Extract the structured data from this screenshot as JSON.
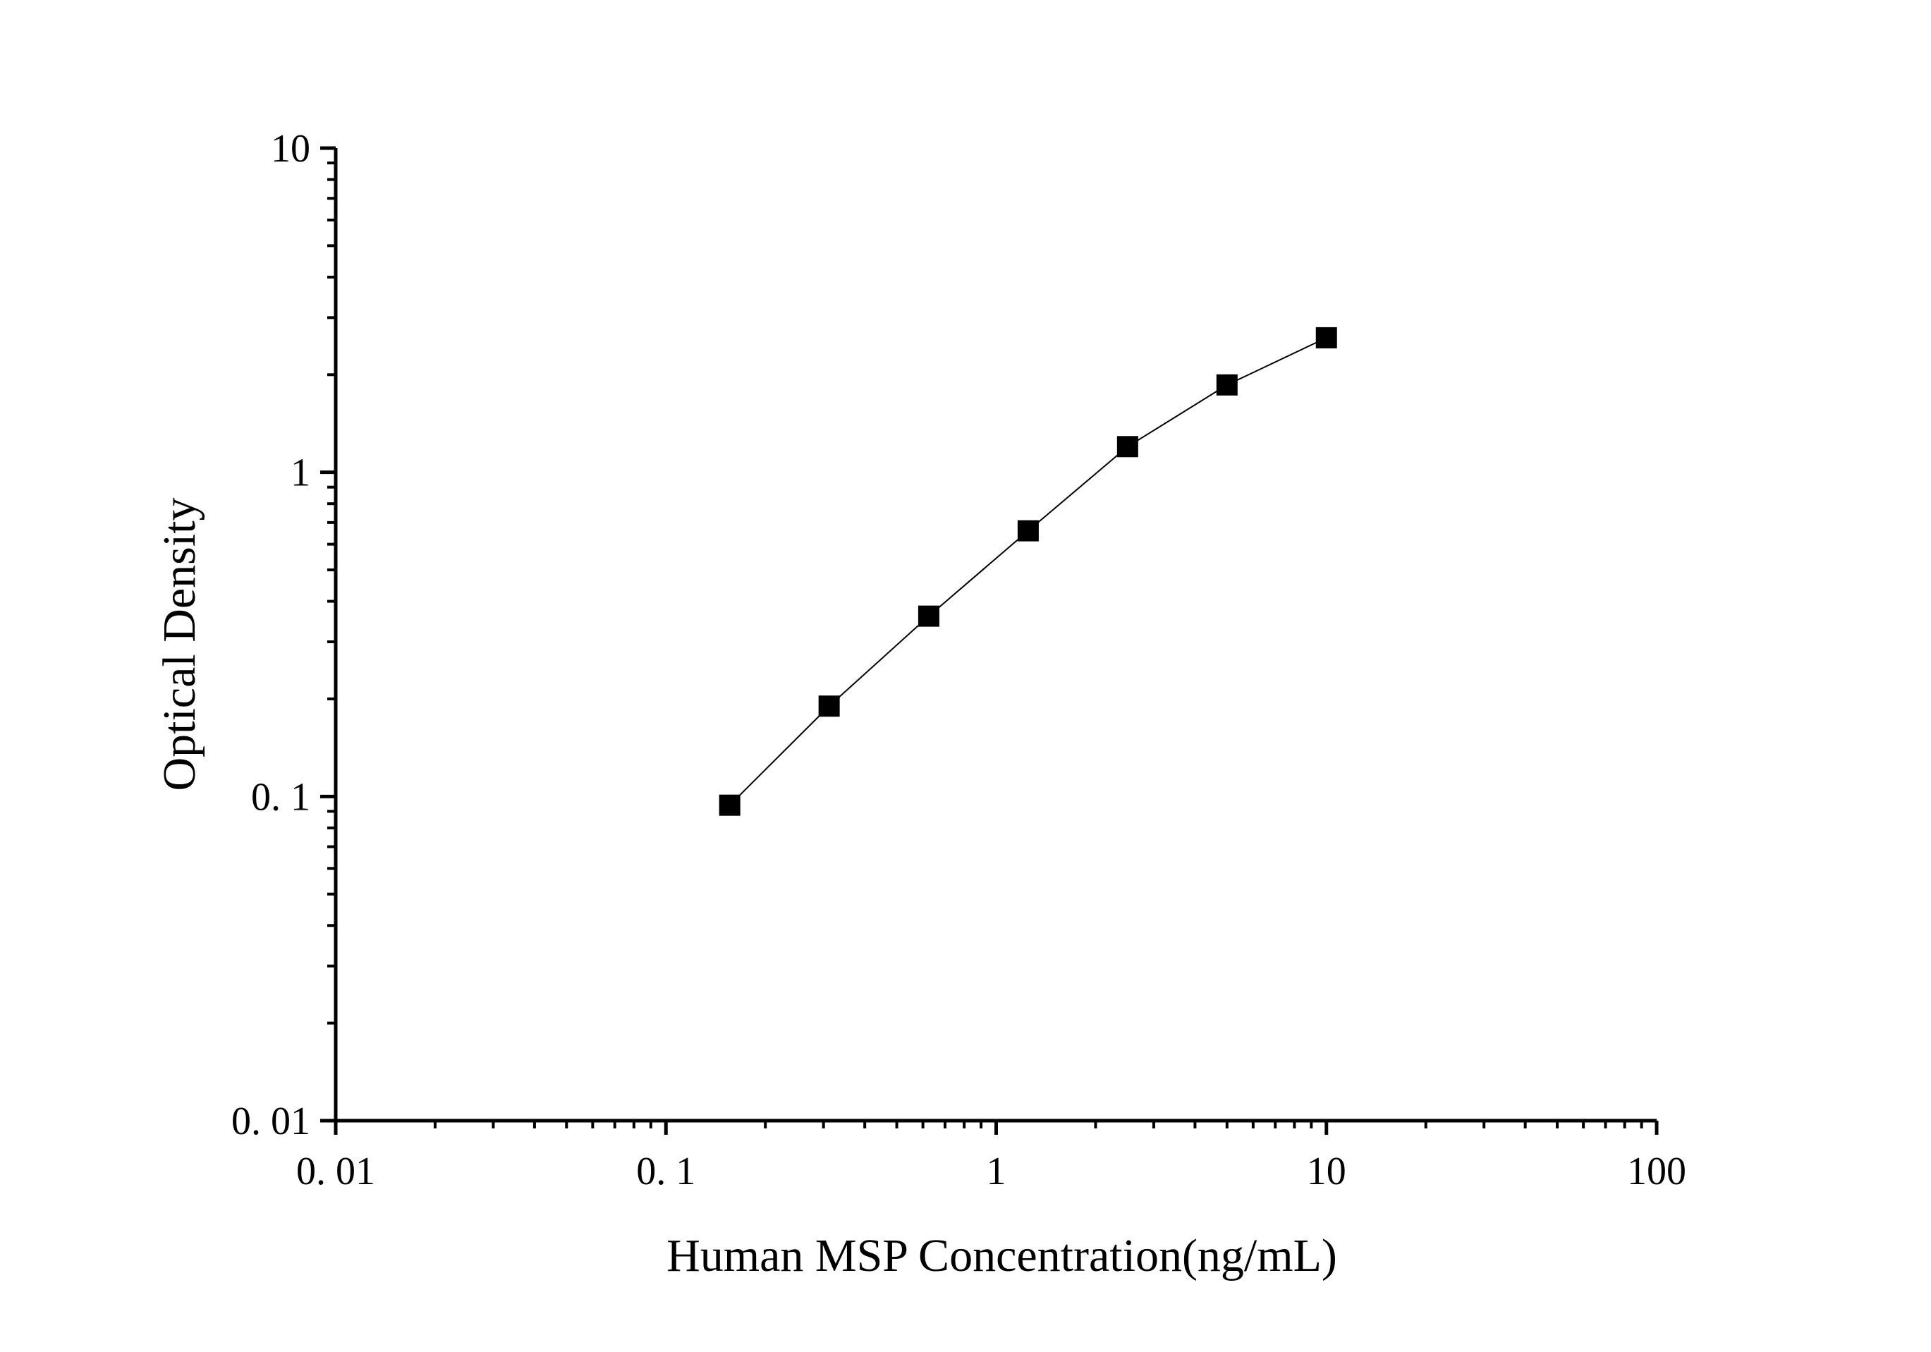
{
  "chart_data": {
    "type": "line",
    "xlabel": "Human MSP Concentration(ng/mL)",
    "ylabel": "Optical Density",
    "x_scale": "log",
    "y_scale": "log",
    "xlim": [
      0.01,
      100
    ],
    "ylim": [
      0.01,
      10
    ],
    "x_ticks": [
      0.01,
      0.1,
      1,
      10,
      100
    ],
    "x_tick_labels": [
      "0. 01",
      "0. 1",
      "1",
      "10",
      "100"
    ],
    "y_ticks": [
      0.01,
      0.1,
      1,
      10
    ],
    "y_tick_labels": [
      "0. 01",
      "0. 1",
      "1",
      "10"
    ],
    "grid": false,
    "marker": "square",
    "color": "#000000",
    "series": [
      {
        "x": [
          0.156,
          0.312,
          0.625,
          1.25,
          2.5,
          5,
          10
        ],
        "y": [
          0.094,
          0.19,
          0.36,
          0.66,
          1.2,
          1.86,
          2.6
        ]
      }
    ]
  }
}
